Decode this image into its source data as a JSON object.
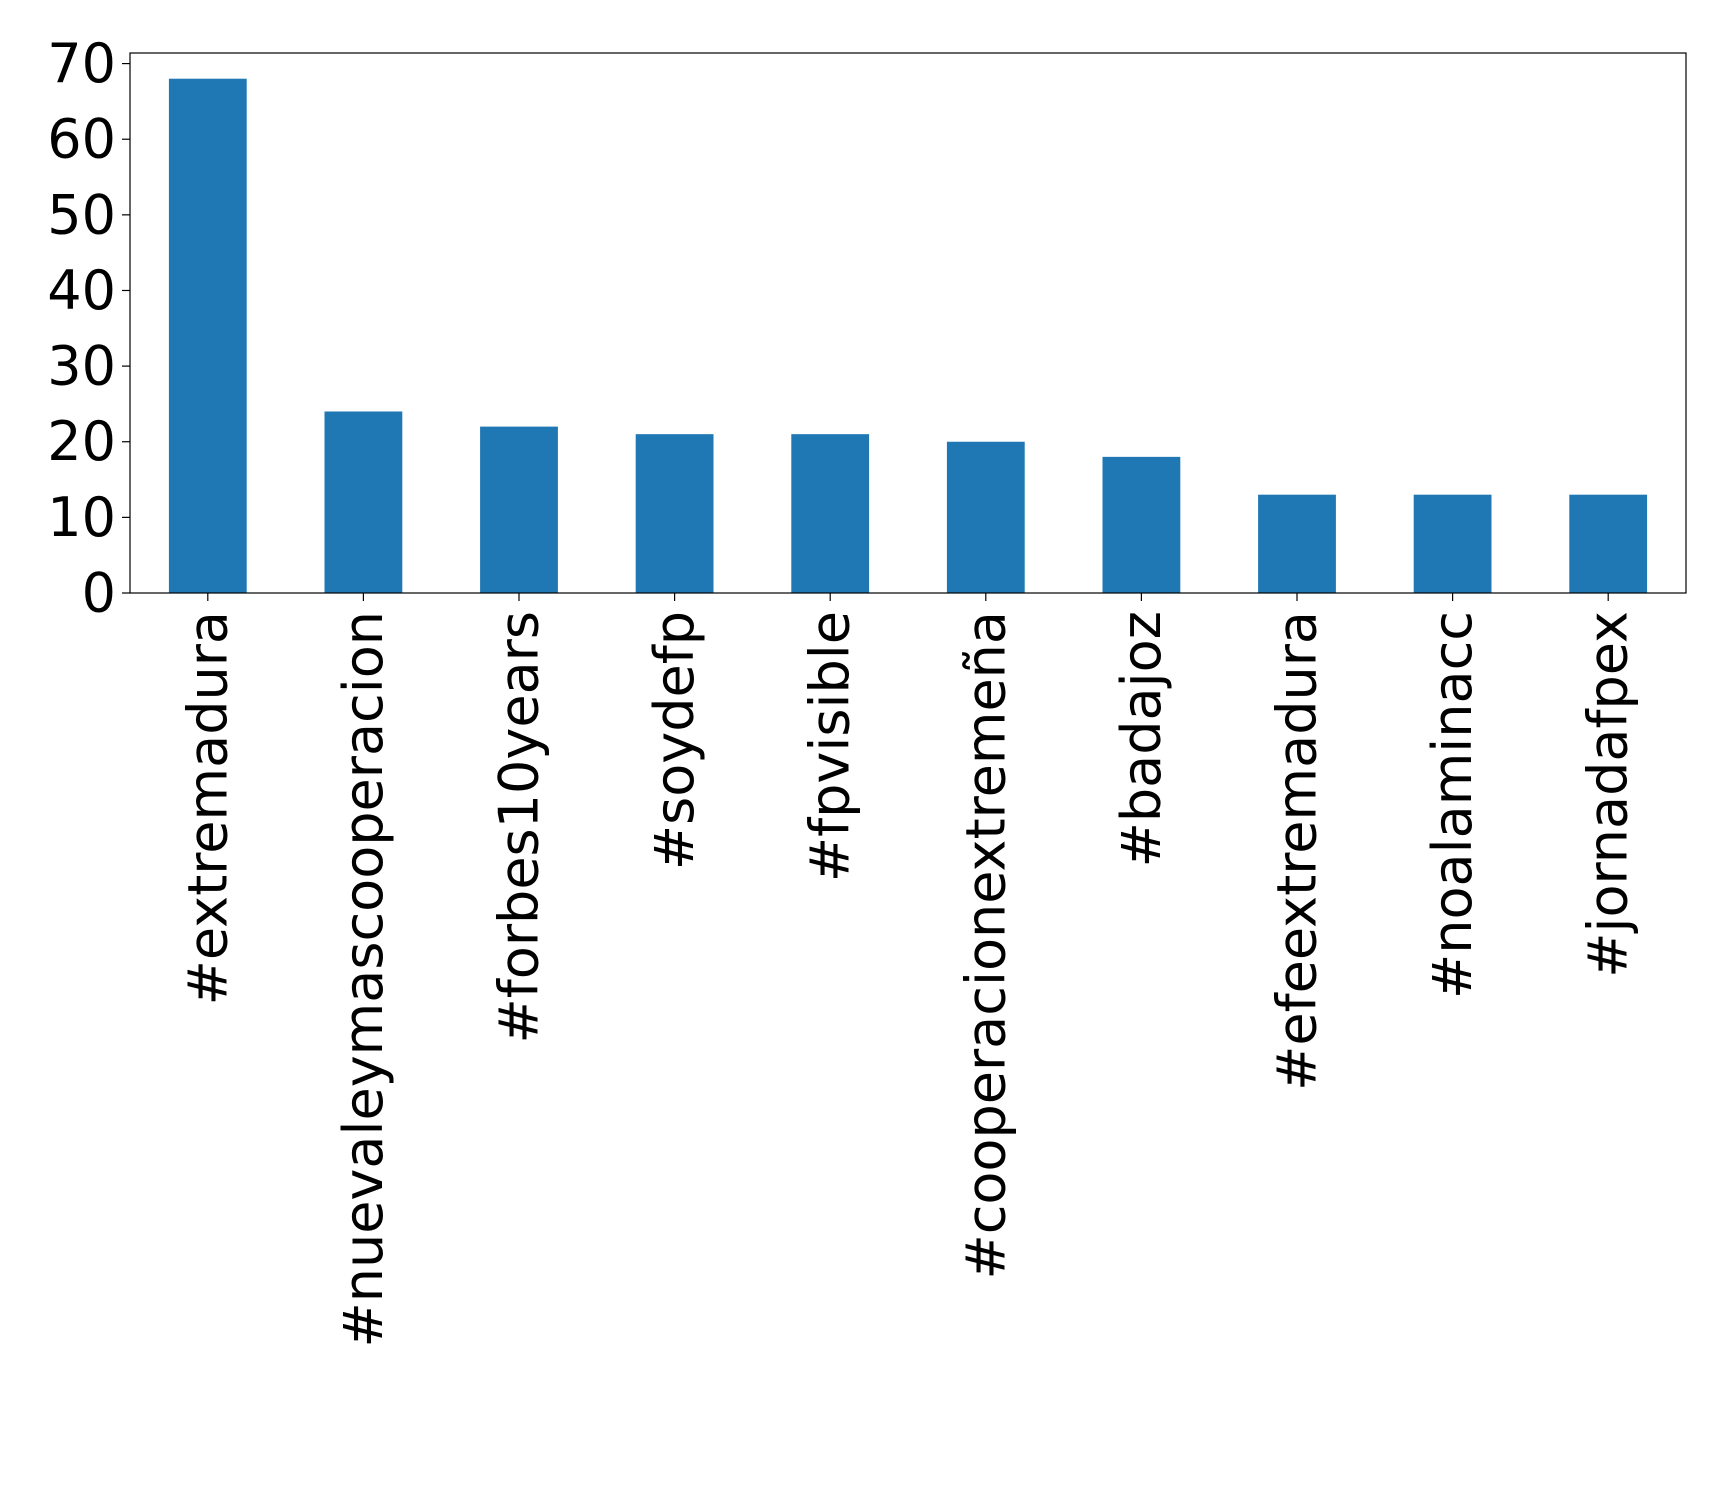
{
  "chart_data": {
    "type": "bar",
    "title": "",
    "xlabel": "",
    "ylabel": "",
    "categories": [
      "#extremadura",
      "#nuevaleymascooperacion",
      "#forbes10years",
      "#soydefp",
      "#fpvisible",
      "#cooperacionextremeña",
      "#badajoz",
      "#efeextremadura",
      "#noalaminacc",
      "#jornadafpex"
    ],
    "values": [
      68,
      24,
      22,
      21,
      21,
      20,
      18,
      13,
      13,
      13
    ],
    "ylim": [
      0,
      71.4
    ],
    "yticks": [
      0,
      10,
      20,
      30,
      40,
      50,
      60,
      70
    ],
    "bar_color": "#1f77b4",
    "grid": false,
    "legend": "none"
  }
}
